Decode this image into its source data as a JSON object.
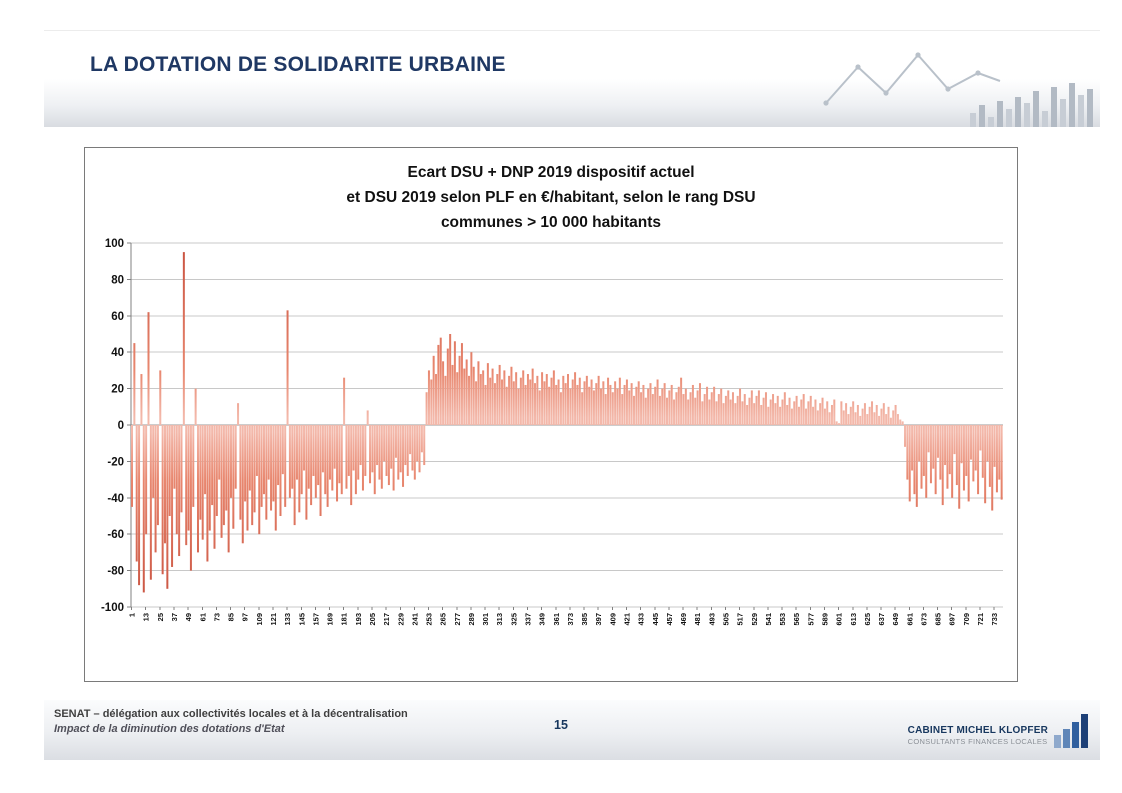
{
  "slide": {
    "header": {
      "title": "LA DOTATION DE SOLIDARITE URBAINE"
    },
    "footer": {
      "left_line1": "SENAT – délégation aux collectivités locales et à la décentralisation",
      "left_line2": "Impact de la diminution des dotations d'Etat",
      "page_number": "15",
      "logo_line1": "CABINET MICHEL KLOPFER",
      "logo_line2": "CONSULTANTS FINANCES LOCALES"
    }
  },
  "colors": {
    "accent_navy": "#1f3864",
    "bar_red": "#cf4a3a",
    "logo_blue": "#2a5da8"
  },
  "chart_data": {
    "type": "bar",
    "title_lines": [
      "Ecart DSU + DNP 2019 dispositif actuel",
      "et DSU 2019 selon PLF en €/habitant, selon le rang DSU",
      "communes > 10 000 habitants"
    ],
    "xlabel": "",
    "ylabel": "",
    "ylim": [
      -100,
      100
    ],
    "y_ticks": [
      100,
      80,
      60,
      40,
      20,
      0,
      -20,
      -40,
      -60,
      -80,
      -100
    ],
    "grid": true,
    "legend": false,
    "x_rank_start": 1,
    "x_rank_step": 2,
    "x_tick_labels": [
      "1",
      "13",
      "25",
      "37",
      "49",
      "61",
      "73",
      "85",
      "97",
      "109",
      "121",
      "133",
      "145",
      "157",
      "169",
      "181",
      "193",
      "205",
      "217",
      "229",
      "241",
      "253",
      "265",
      "277",
      "289",
      "301",
      "313",
      "325",
      "337",
      "349",
      "361",
      "373",
      "385",
      "397",
      "409",
      "421",
      "433",
      "445",
      "457",
      "469",
      "481",
      "493",
      "505",
      "517",
      "529",
      "541",
      "553",
      "565",
      "577",
      "589",
      "601",
      "613",
      "625",
      "637",
      "649",
      "661",
      "673",
      "685",
      "697",
      "709",
      "721",
      "733"
    ],
    "bar_color_dark": "#c8503e",
    "bar_color_mid": "#e8876f",
    "bar_color_light": "#f3b8aa",
    "values": [
      -45,
      45,
      -75,
      -88,
      28,
      -92,
      -60,
      62,
      -85,
      -40,
      -70,
      -55,
      30,
      -82,
      -65,
      -90,
      -50,
      -78,
      -35,
      -60,
      -72,
      -48,
      95,
      -66,
      -58,
      -80,
      -45,
      20,
      -70,
      -52,
      -63,
      -38,
      -75,
      -58,
      -44,
      -68,
      -50,
      -30,
      -62,
      -55,
      -47,
      -70,
      -40,
      -57,
      -35,
      12,
      -52,
      -65,
      -42,
      -58,
      -36,
      -55,
      -48,
      -28,
      -60,
      -45,
      -38,
      -52,
      -30,
      -47,
      -42,
      -58,
      -33,
      -50,
      -27,
      -45,
      63,
      -40,
      -35,
      -55,
      -30,
      -48,
      -38,
      -25,
      -52,
      -35,
      -44,
      -28,
      -40,
      -33,
      -50,
      -26,
      -38,
      -45,
      -30,
      -36,
      -24,
      -42,
      -32,
      -38,
      26,
      -35,
      -28,
      -44,
      -25,
      -38,
      -30,
      -22,
      -36,
      -28,
      8,
      -32,
      -26,
      -38,
      -22,
      -30,
      -35,
      -20,
      -28,
      -33,
      -24,
      -36,
      -18,
      -30,
      -26,
      -34,
      -22,
      -28,
      -16,
      -25,
      -30,
      -20,
      -26,
      -15,
      -22,
      18,
      30,
      25,
      38,
      28,
      44,
      48,
      35,
      27,
      42,
      50,
      33,
      46,
      29,
      38,
      45,
      31,
      36,
      27,
      40,
      32,
      24,
      35,
      28,
      30,
      22,
      34,
      26,
      31,
      23,
      28,
      33,
      25,
      30,
      21,
      27,
      32,
      24,
      29,
      20,
      26,
      30,
      22,
      28,
      25,
      31,
      23,
      27,
      19,
      29,
      24,
      28,
      21,
      26,
      30,
      22,
      25,
      18,
      27,
      23,
      28,
      20,
      25,
      29,
      22,
      26,
      18,
      24,
      27,
      21,
      25,
      19,
      23,
      27,
      20,
      24,
      17,
      26,
      22,
      18,
      24,
      20,
      26,
      17,
      22,
      25,
      19,
      23,
      16,
      21,
      24,
      18,
      22,
      15,
      20,
      23,
      17,
      21,
      25,
      16,
      20,
      23,
      15,
      19,
      22,
      14,
      18,
      21,
      26,
      17,
      20,
      14,
      18,
      22,
      15,
      19,
      23,
      13,
      17,
      21,
      14,
      18,
      21,
      13,
      17,
      20,
      12,
      16,
      19,
      14,
      18,
      12,
      16,
      20,
      13,
      17,
      11,
      15,
      19,
      12,
      16,
      19,
      11,
      15,
      18,
      10,
      14,
      17,
      12,
      16,
      10,
      14,
      18,
      11,
      15,
      9,
      13,
      16,
      10,
      14,
      17,
      9,
      13,
      16,
      10,
      14,
      8,
      12,
      15,
      9,
      13,
      7,
      11,
      14,
      2,
      1,
      13,
      8,
      12,
      6,
      10,
      13,
      7,
      11,
      5,
      9,
      12,
      6,
      10,
      13,
      7,
      11,
      5,
      9,
      12,
      6,
      10,
      4,
      8,
      11,
      6,
      3,
      2,
      -12,
      -30,
      -42,
      -25,
      -38,
      -45,
      -20,
      -35,
      -28,
      -40,
      -15,
      -32,
      -24,
      -38,
      -18,
      -30,
      -44,
      -22,
      -35,
      -27,
      -40,
      -16,
      -33,
      -46,
      -21,
      -36,
      -28,
      -42,
      -19,
      -31,
      -25,
      -38,
      -14,
      -29,
      -43,
      -20,
      -34,
      -47,
      -23,
      -37,
      -30,
      -41
    ]
  }
}
